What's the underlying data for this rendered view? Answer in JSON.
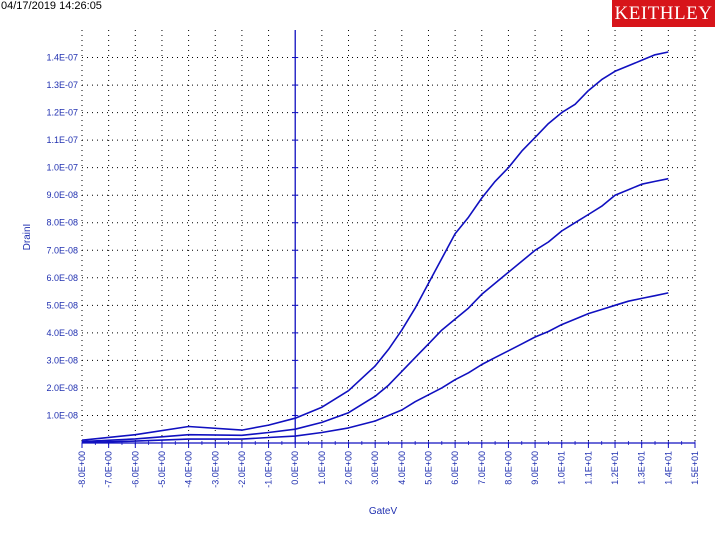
{
  "timestamp": "04/17/2019 14:26:05",
  "logo_text": "KEITHLEY",
  "colors": {
    "series": "#1010c0",
    "logo_bg": "#d7141a",
    "tick_text": "#2030b0"
  },
  "chart_data": {
    "type": "line",
    "title": "",
    "xlabel": "GateV",
    "ylabel": "DrainI",
    "xlim": [
      -8,
      15
    ],
    "ylim": [
      0,
      1.5e-07
    ],
    "grid": true,
    "x_ticks": [
      {
        "value": -8,
        "label": "-8.0E+00"
      },
      {
        "value": -7,
        "label": "-7.0E+00"
      },
      {
        "value": -6,
        "label": "-6.0E+00"
      },
      {
        "value": -5,
        "label": "-5.0E+00"
      },
      {
        "value": -4,
        "label": "-4.0E+00"
      },
      {
        "value": -3,
        "label": "-3.0E+00"
      },
      {
        "value": -2,
        "label": "-2.0E+00"
      },
      {
        "value": -1,
        "label": "-1.0E+00"
      },
      {
        "value": 0,
        "label": "0.0E+00"
      },
      {
        "value": 1,
        "label": "1.0E+00"
      },
      {
        "value": 2,
        "label": "2.0E+00"
      },
      {
        "value": 3,
        "label": "3.0E+00"
      },
      {
        "value": 4,
        "label": "4.0E+00"
      },
      {
        "value": 5,
        "label": "5.0E+00"
      },
      {
        "value": 6,
        "label": "6.0E+00"
      },
      {
        "value": 7,
        "label": "7.0E+00"
      },
      {
        "value": 8,
        "label": "8.0E+00"
      },
      {
        "value": 9,
        "label": "9.0E+00"
      },
      {
        "value": 10,
        "label": "1.0E+01"
      },
      {
        "value": 11,
        "label": "1.1E+01"
      },
      {
        "value": 12,
        "label": "1.2E+01"
      },
      {
        "value": 13,
        "label": "1.3E+01"
      },
      {
        "value": 14,
        "label": "1.4E+01"
      },
      {
        "value": 15,
        "label": "1.5E+01"
      }
    ],
    "y_ticks": [
      {
        "value": 1e-08,
        "label": "1.0E-08"
      },
      {
        "value": 2e-08,
        "label": "2.0E-08"
      },
      {
        "value": 3e-08,
        "label": "3.0E-08"
      },
      {
        "value": 4e-08,
        "label": "4.0E-08"
      },
      {
        "value": 5e-08,
        "label": "5.0E-08"
      },
      {
        "value": 6e-08,
        "label": "6.0E-08"
      },
      {
        "value": 7e-08,
        "label": "7.0E-08"
      },
      {
        "value": 8e-08,
        "label": "8.0E-08"
      },
      {
        "value": 9e-08,
        "label": "9.0E-08"
      },
      {
        "value": 1e-07,
        "label": "1.0E-07"
      },
      {
        "value": 1.1e-07,
        "label": "1.1E-07"
      },
      {
        "value": 1.2e-07,
        "label": "1.2E-07"
      },
      {
        "value": 1.3e-07,
        "label": "1.3E-07"
      },
      {
        "value": 1.4e-07,
        "label": "1.4E-07"
      }
    ],
    "series": [
      {
        "x": [
          -8,
          -6,
          -4,
          -2,
          -1,
          0,
          1,
          2,
          3,
          3.5,
          4,
          4.5,
          5,
          5.5,
          6,
          6.5,
          7,
          7.5,
          8,
          8.5,
          9,
          9.5,
          10,
          10.5,
          11,
          11.5,
          12,
          12.5,
          13,
          13.5,
          14
        ],
        "y": [
          1e-09,
          3e-09,
          6e-09,
          4.7e-09,
          6.5e-09,
          9e-09,
          1.3e-08,
          1.9e-08,
          2.8e-08,
          3.4e-08,
          4.1e-08,
          4.9e-08,
          5.8e-08,
          6.7e-08,
          7.6e-08,
          8.2e-08,
          8.9e-08,
          9.5e-08,
          1e-07,
          1.06e-07,
          1.11e-07,
          1.16e-07,
          1.2e-07,
          1.23e-07,
          1.28e-07,
          1.32e-07,
          1.35e-07,
          1.37e-07,
          1.39e-07,
          1.41e-07,
          1.42e-07
        ]
      },
      {
        "x": [
          -8,
          -6,
          -4,
          -2,
          -1,
          0,
          1,
          2,
          3,
          3.5,
          4,
          4.5,
          5,
          5.5,
          6,
          6.5,
          7,
          7.5,
          8,
          8.5,
          9,
          9.5,
          10,
          10.5,
          11,
          11.5,
          12,
          12.5,
          13,
          13.5,
          14
        ],
        "y": [
          5e-10,
          1.5e-09,
          3e-09,
          2.8e-09,
          3.8e-09,
          5e-09,
          7.5e-09,
          1.1e-08,
          1.7e-08,
          2.1e-08,
          2.6e-08,
          3.1e-08,
          3.6e-08,
          4.1e-08,
          4.5e-08,
          4.9e-08,
          5.4e-08,
          5.8e-08,
          6.2e-08,
          6.6e-08,
          7e-08,
          7.3e-08,
          7.7e-08,
          8e-08,
          8.3e-08,
          8.6e-08,
          9e-08,
          9.2e-08,
          9.4e-08,
          9.5e-08,
          9.6e-08
        ]
      },
      {
        "x": [
          -8,
          -6,
          -4,
          -2,
          -1,
          0,
          1,
          2,
          3,
          3.5,
          4,
          4.5,
          5,
          5.5,
          6,
          6.5,
          7,
          7.5,
          8,
          8.5,
          9,
          9.5,
          10,
          10.5,
          11,
          11.5,
          12,
          12.5,
          13,
          13.5,
          14
        ],
        "y": [
          2e-10,
          7e-10,
          1.4e-09,
          1.4e-09,
          2e-09,
          2.5e-09,
          3.8e-09,
          5.5e-09,
          8e-09,
          1e-08,
          1.2e-08,
          1.5e-08,
          1.75e-08,
          2e-08,
          2.3e-08,
          2.55e-08,
          2.85e-08,
          3.1e-08,
          3.35e-08,
          3.6e-08,
          3.85e-08,
          4.05e-08,
          4.3e-08,
          4.5e-08,
          4.7e-08,
          4.85e-08,
          5e-08,
          5.15e-08,
          5.25e-08,
          5.35e-08,
          5.45e-08
        ]
      }
    ]
  }
}
